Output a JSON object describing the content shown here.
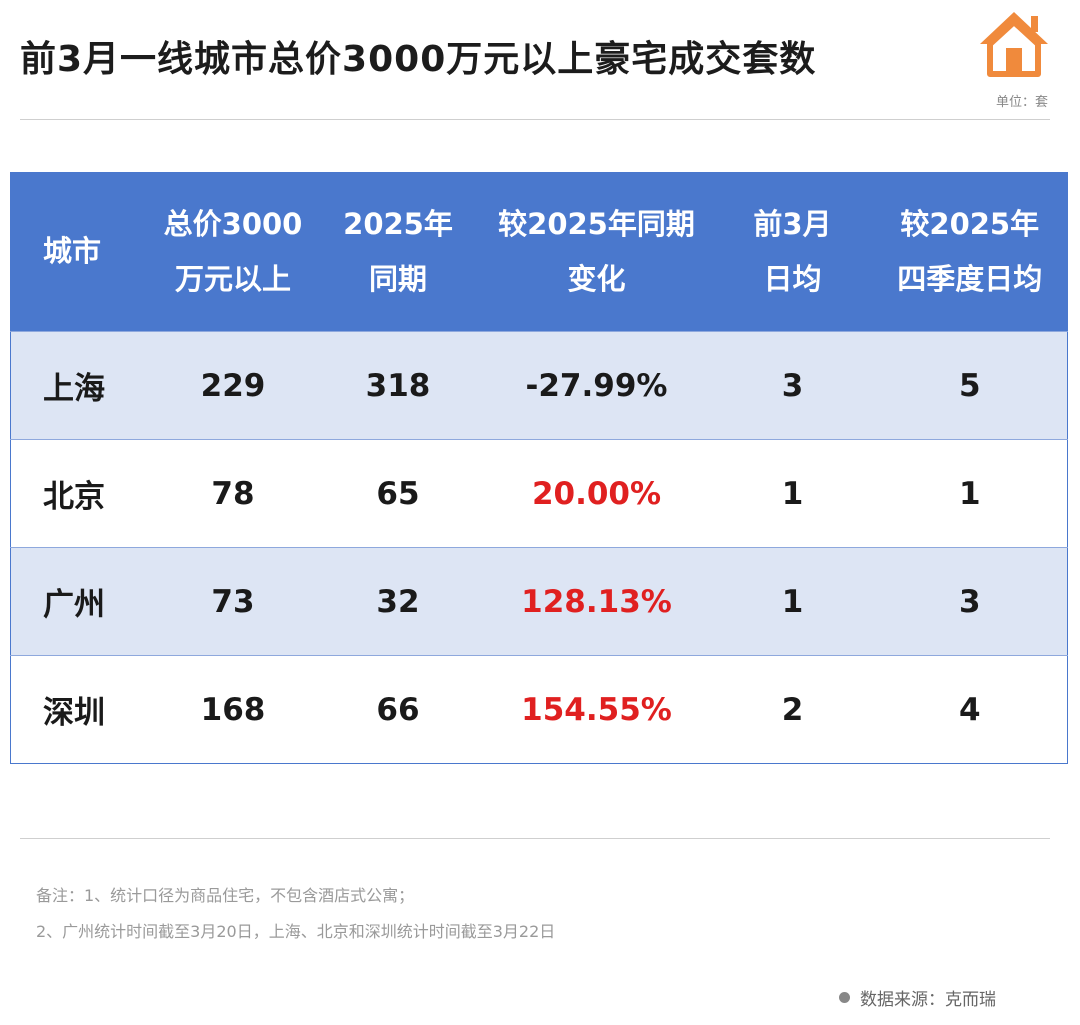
{
  "title": "前3月一线城市总价3000万元以上豪宅成交套数",
  "unit": "单位：套",
  "colors": {
    "header_bg": "#4a78cd",
    "row_shade": "#dde5f4",
    "positive": "#e02020",
    "icon": "#f08a3c"
  },
  "chart_data": {
    "type": "table",
    "title": "前3月一线城市总价3000万元以上豪宅成交套数",
    "unit": "单位：套",
    "columns": [
      [
        "城市"
      ],
      [
        "总价3000",
        "万元以上"
      ],
      [
        "2025年",
        "同期"
      ],
      [
        "较2025年同期",
        "变化"
      ],
      [
        "前3月",
        "日均"
      ],
      [
        "较2025年",
        "四季度日均"
      ]
    ],
    "rows": [
      {
        "city": "上海",
        "current": "229",
        "prior": "318",
        "change": "-27.99%",
        "daily_avg": "3",
        "q4_daily_avg": "5"
      },
      {
        "city": "北京",
        "current": "78",
        "prior": "65",
        "change": "20.00%",
        "daily_avg": "1",
        "q4_daily_avg": "1"
      },
      {
        "city": "广州",
        "current": "73",
        "prior": "32",
        "change": "128.13%",
        "daily_avg": "1",
        "q4_daily_avg": "3"
      },
      {
        "city": "深圳",
        "current": "168",
        "prior": "66",
        "change": "154.55%",
        "daily_avg": "2",
        "q4_daily_avg": "4"
      }
    ]
  },
  "notes": [
    "备注：1、统计口径为商品住宅，不包含酒店式公寓；",
    "2、广州统计时间截至3月20日，上海、北京和深圳统计时间截至3月22日"
  ],
  "source": "数据来源：克而瑞"
}
